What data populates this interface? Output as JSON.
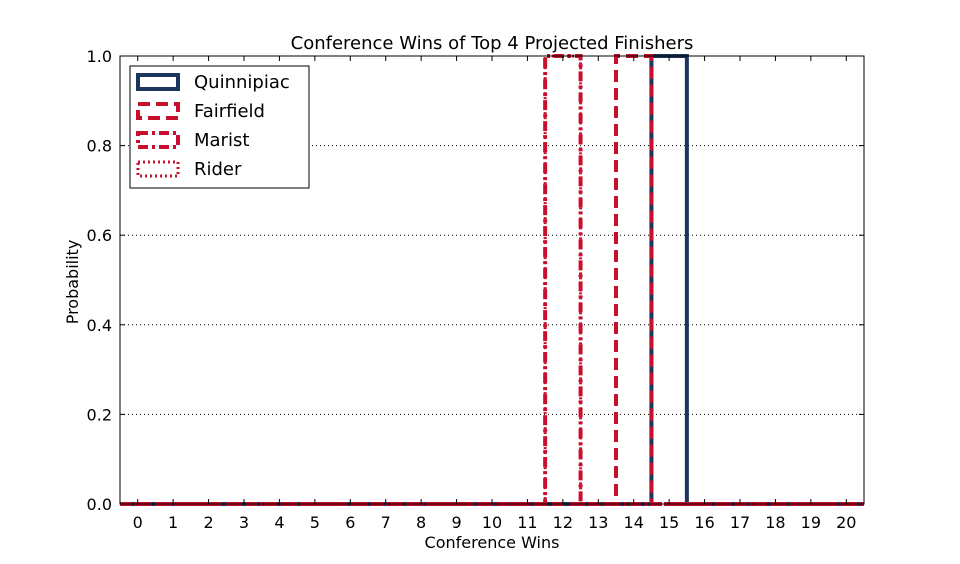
{
  "chart_data": {
    "type": "step",
    "title": "Conference Wins of Top 4 Projected Finishers",
    "xlabel": "Conference Wins",
    "ylabel": "Probability",
    "xlim": [
      -0.5,
      20.5
    ],
    "ylim": [
      0.0,
      1.0
    ],
    "x_ticks": [
      "0",
      "1",
      "2",
      "3",
      "4",
      "5",
      "6",
      "7",
      "8",
      "9",
      "10",
      "11",
      "12",
      "13",
      "14",
      "15",
      "16",
      "17",
      "18",
      "19",
      "20"
    ],
    "y_ticks": [
      "0.0",
      "0.2",
      "0.4",
      "0.6",
      "0.8",
      "1.0"
    ],
    "grid": "y-dotted",
    "legend_position": "top-left",
    "series": [
      {
        "name": "Quinnipiac",
        "color": "#1b365d",
        "style": "solid",
        "x": [
          14.5,
          15.5
        ],
        "y": [
          1.0,
          1.0
        ]
      },
      {
        "name": "Fairfield",
        "color": "#c8102e",
        "style": "dashed",
        "x": [
          13.5,
          14.5
        ],
        "y": [
          1.0,
          1.0
        ]
      },
      {
        "name": "Marist",
        "color": "#c8102e",
        "style": "dashdot",
        "x": [
          11.5,
          12.5
        ],
        "y": [
          1.0,
          1.0
        ]
      },
      {
        "name": "Rider",
        "color": "#c8102e",
        "style": "dotted",
        "x": [
          11.5,
          12.5
        ],
        "y": [
          1.0,
          1.0
        ]
      }
    ]
  }
}
